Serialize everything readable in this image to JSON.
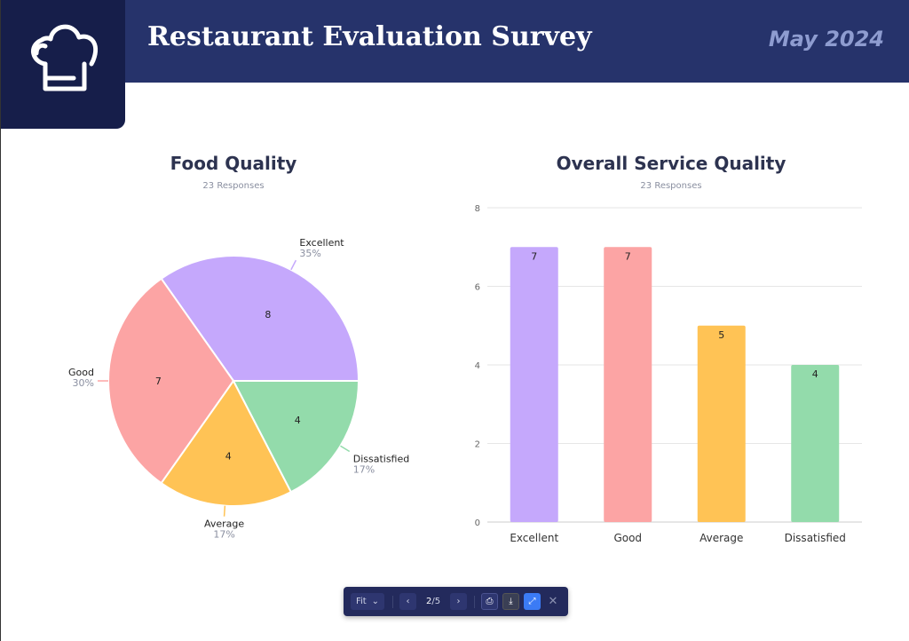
{
  "header": {
    "title": "Restaurant Evaluation Survey",
    "date": "May 2024",
    "logo_icon": "chef-hat-icon"
  },
  "chart_data": [
    {
      "type": "pie",
      "title": "Food Quality",
      "subtitle": "23 Responses",
      "categories": [
        "Excellent",
        "Good",
        "Average",
        "Dissatisfied"
      ],
      "values": [
        8,
        7,
        4,
        4
      ],
      "percent_labels": [
        "35%",
        "30%",
        "17%",
        "17%"
      ],
      "colors": [
        "#c5a8fc",
        "#fca4a4",
        "#ffc355",
        "#93dbab"
      ]
    },
    {
      "type": "bar",
      "title": "Overall Service Quality",
      "subtitle": "23 Responses",
      "categories": [
        "Excellent",
        "Good",
        "Average",
        "Dissatisfied"
      ],
      "values": [
        7,
        7,
        5,
        4
      ],
      "ylim": [
        0,
        8
      ],
      "yticks": [
        "0",
        "2",
        "4",
        "6",
        "8"
      ],
      "grid": true,
      "colors": [
        "#c5a8fc",
        "#fca4a4",
        "#ffc355",
        "#93dbab"
      ]
    }
  ],
  "toolbar": {
    "zoom": "Fit",
    "page": "2",
    "pages": "5",
    "sep": "/"
  }
}
